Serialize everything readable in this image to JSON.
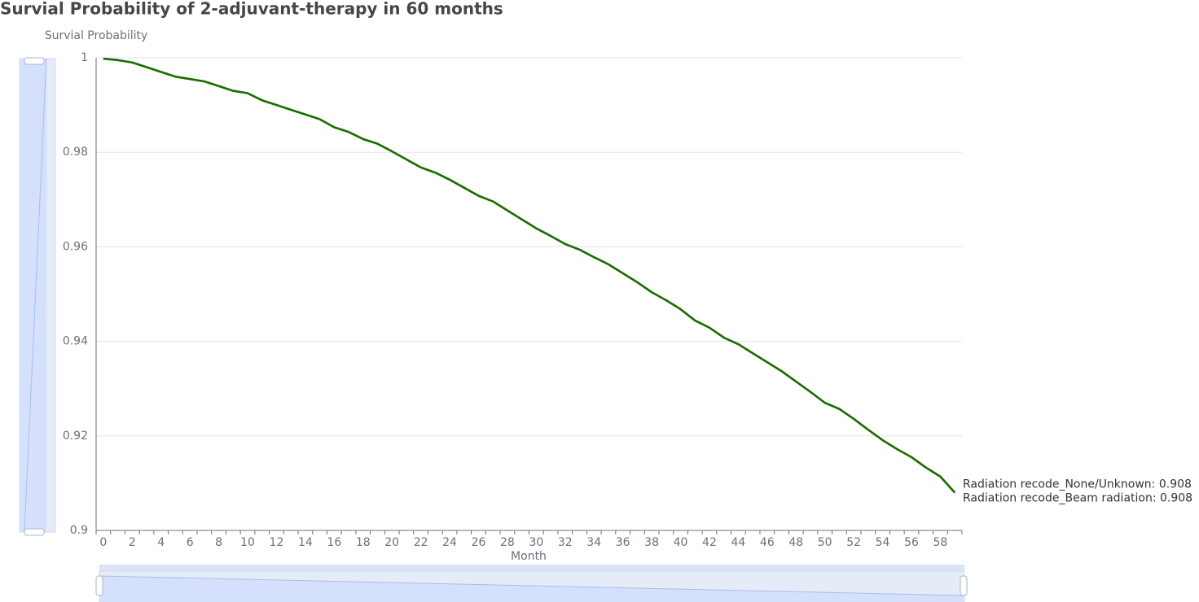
{
  "chart_data": {
    "type": "line",
    "title": "Survial Probability of 2-adjuvant-therapy in 60 months",
    "y_axis_label": "Survial Probability",
    "x_axis_label": "Month",
    "categories": [
      0,
      null,
      2,
      null,
      4,
      null,
      6,
      null,
      8,
      null,
      10,
      null,
      12,
      null,
      14,
      null,
      16,
      null,
      18,
      null,
      20,
      null,
      22,
      null,
      24,
      null,
      26,
      null,
      28,
      null,
      30,
      null,
      32,
      null,
      34,
      null,
      36,
      null,
      38,
      null,
      40,
      null,
      42,
      null,
      44,
      null,
      46,
      null,
      48,
      null,
      50,
      null,
      52,
      null,
      54,
      null,
      56,
      null,
      58,
      null
    ],
    "ylim": [
      0.9,
      1
    ],
    "yticks": [
      0.9,
      0.92,
      0.94,
      0.96,
      0.98,
      1
    ],
    "grid": true,
    "series": [
      {
        "label": "Radiation recode_None/Unknown: 0.908",
        "color": "#1a6e00",
        "values": [
          0.9998,
          0.9995,
          0.999,
          0.998,
          0.997,
          0.996,
          0.9955,
          0.995,
          0.994,
          0.993,
          0.9925,
          0.991,
          0.99,
          0.989,
          0.988,
          0.987,
          0.9853,
          0.9843,
          0.9828,
          0.9818,
          0.9802,
          0.9785,
          0.9768,
          0.9757,
          0.9742,
          0.9725,
          0.9708,
          0.9696,
          0.9677,
          0.9658,
          0.9639,
          0.9623,
          0.9606,
          0.9594,
          0.9578,
          0.9563,
          0.9544,
          0.9525,
          0.9504,
          0.9487,
          0.9468,
          0.9444,
          0.9429,
          0.9408,
          0.9394,
          0.9375,
          0.9356,
          0.9337,
          0.9315,
          0.9293,
          0.927,
          0.9257,
          0.9236,
          0.9213,
          0.9191,
          0.9172,
          0.9155,
          0.9133,
          0.9114,
          0.908
        ]
      },
      {
        "label": "Radiation recode_Beam radiation: 0.908",
        "color": "#1a6e00",
        "values": [
          0.9998,
          0.9995,
          0.999,
          0.998,
          0.997,
          0.996,
          0.9955,
          0.995,
          0.994,
          0.993,
          0.9925,
          0.991,
          0.99,
          0.989,
          0.988,
          0.987,
          0.9853,
          0.9843,
          0.9828,
          0.9818,
          0.9802,
          0.9785,
          0.9768,
          0.9757,
          0.9742,
          0.9725,
          0.9708,
          0.9696,
          0.9677,
          0.9658,
          0.9639,
          0.9623,
          0.9606,
          0.9594,
          0.9578,
          0.9563,
          0.9544,
          0.9525,
          0.9504,
          0.9487,
          0.9468,
          0.9444,
          0.9429,
          0.9408,
          0.9394,
          0.9375,
          0.9356,
          0.9337,
          0.9315,
          0.9293,
          0.927,
          0.9257,
          0.9236,
          0.9213,
          0.9191,
          0.9172,
          0.9155,
          0.9133,
          0.9114,
          0.908
        ]
      }
    ]
  }
}
